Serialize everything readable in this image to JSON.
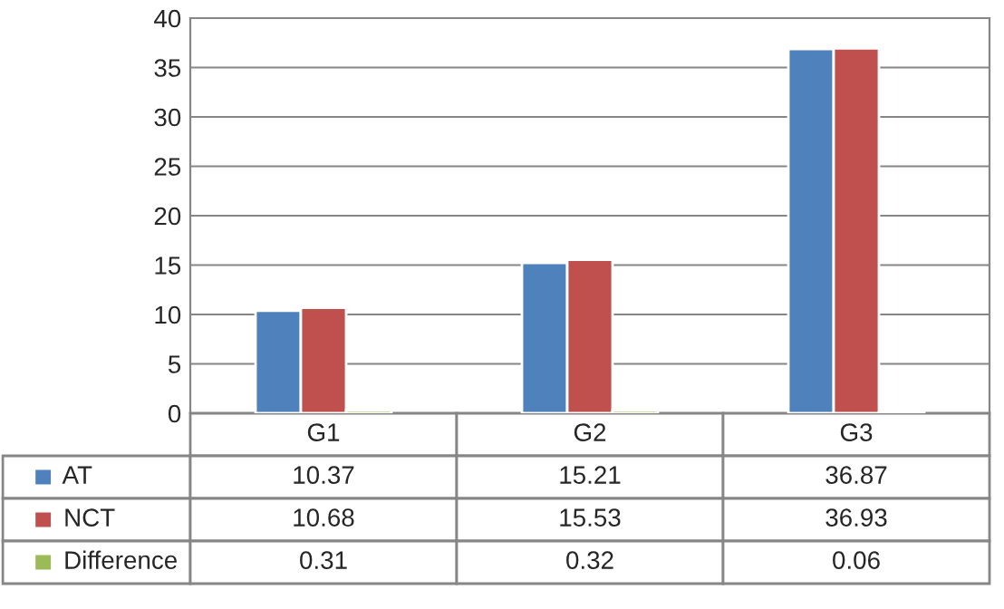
{
  "chart_data": {
    "type": "bar",
    "categories": [
      "G1",
      "G2",
      "G3"
    ],
    "series": [
      {
        "name": "AT",
        "color": "#4f81bd",
        "values": [
          10.37,
          15.21,
          36.87
        ]
      },
      {
        "name": "NCT",
        "color": "#c0504d",
        "values": [
          10.68,
          15.53,
          36.93
        ]
      },
      {
        "name": "Difference",
        "color": "#9bbb59",
        "values": [
          0.31,
          0.32,
          0.06
        ]
      }
    ],
    "ylim": [
      0,
      40
    ],
    "yticks": [
      0,
      5,
      10,
      15,
      20,
      25,
      30,
      35,
      40
    ],
    "grid": "y",
    "legend": "bottom",
    "data_labels": true
  }
}
